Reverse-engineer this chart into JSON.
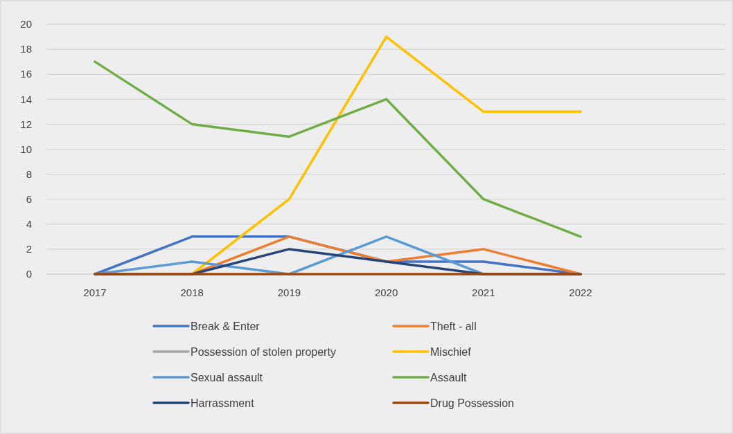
{
  "chart_data": {
    "type": "line",
    "categories": [
      "2017",
      "2018",
      "2019",
      "2020",
      "2021",
      "2022"
    ],
    "ylim": [
      0,
      20
    ],
    "yticks": [
      0,
      2,
      4,
      6,
      8,
      10,
      12,
      14,
      16,
      18,
      20
    ],
    "grid": "y",
    "legend": "bottom",
    "marker": "none",
    "line_style": "solid",
    "series": [
      {
        "name": "Break & Enter",
        "color": "#4472c4",
        "values": [
          0,
          3,
          3,
          1,
          1,
          0
        ]
      },
      {
        "name": "Theft - all",
        "color": "#ed7d31",
        "values": [
          0,
          0,
          3,
          1,
          2,
          0
        ]
      },
      {
        "name": "Possession of stolen property",
        "color": "#a5a5a5",
        "values": [
          null,
          null,
          null,
          null,
          null,
          null
        ]
      },
      {
        "name": "Mischief",
        "color": "#ffc000",
        "values": [
          0,
          0,
          6,
          19,
          13,
          13
        ]
      },
      {
        "name": "Sexual assault",
        "color": "#5b9bd5",
        "values": [
          0,
          1,
          0,
          3,
          0,
          0
        ]
      },
      {
        "name": "Assault",
        "color": "#70ad47",
        "values": [
          17,
          12,
          11,
          14,
          6,
          3
        ]
      },
      {
        "name": "Harrassment",
        "color": "#264478",
        "values": [
          0,
          0,
          2,
          1,
          0,
          0
        ]
      },
      {
        "name": "Drug Possession",
        "color": "#9e480e",
        "values": [
          0,
          0,
          0,
          0,
          0,
          0
        ]
      }
    ]
  }
}
